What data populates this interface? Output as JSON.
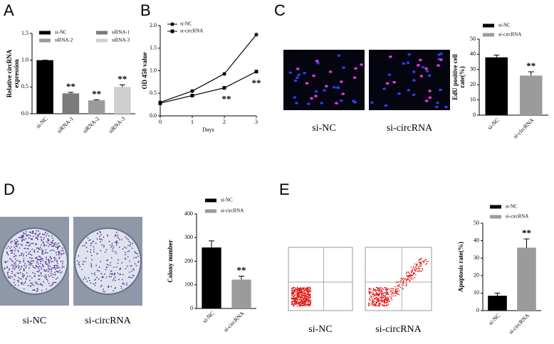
{
  "chart_data": [
    {
      "type": "bar",
      "panel_label": "A",
      "ylabel": [
        "Relative circRNA",
        "expression"
      ],
      "categories": [
        "si-NC",
        "siRNA-1",
        "siRNA-2",
        "siRNA-3"
      ],
      "values": [
        1.0,
        0.38,
        0.25,
        0.5
      ],
      "errors": [
        0,
        0.02,
        0.01,
        0.04
      ],
      "colors": [
        "#000000",
        "#7a7a7a",
        "#9b9b9b",
        "#cfcfcf"
      ],
      "significance": [
        null,
        "**",
        "**",
        "**"
      ],
      "ylim": [
        0,
        1.5
      ],
      "yticks": [
        {
          "value": 0,
          "label": "0.0"
        },
        {
          "value": 0.5,
          "label": "0.5"
        },
        {
          "value": 1,
          "label": "1.0"
        },
        {
          "value": 1.5,
          "label": "1.5"
        }
      ]
    },
    {
      "type": "line",
      "panel_label": "B",
      "ylabel": [
        "OD 450 value"
      ],
      "xlabel": "Days",
      "x": [
        0,
        1,
        2,
        3
      ],
      "xlim": [
        0,
        3
      ],
      "xticks": [
        0,
        1,
        2,
        3
      ],
      "series": [
        {
          "name": "si-NC",
          "color": "#000000",
          "marker": "circle",
          "values": [
            0.3,
            0.55,
            0.93,
            1.8
          ]
        },
        {
          "name": "si-circRNA",
          "color": "#000000",
          "marker": "square",
          "values": [
            0.28,
            0.45,
            0.62,
            0.98
          ]
        }
      ],
      "significance": [
        null,
        null,
        "**",
        "**"
      ],
      "ylim": [
        0,
        2
      ],
      "yticks": [
        {
          "value": 0,
          "label": "0.0"
        },
        {
          "value": 0.5,
          "label": "0.5"
        },
        {
          "value": 1,
          "label": "1.0"
        },
        {
          "value": 1.5,
          "label": "1.5"
        },
        {
          "value": 2,
          "label": "2.0"
        }
      ]
    },
    {
      "type": "bar",
      "panel_label": "C",
      "ylabel": [
        "EdU positive cell",
        "rate(%)"
      ],
      "image_labels": [
        "si-NC",
        "si-circRNA"
      ],
      "categories": [
        "si-NC",
        "si-circRNA"
      ],
      "values": [
        38,
        26
      ],
      "errors": [
        1.5,
        2.5
      ],
      "colors": [
        "#000000",
        "#9b9b9b"
      ],
      "significance": [
        null,
        "**"
      ],
      "ylim": [
        0,
        50
      ],
      "yticks": [
        0,
        10,
        20,
        30,
        40,
        50
      ]
    },
    {
      "type": "bar",
      "panel_label": "D",
      "ylabel": [
        "Colony number"
      ],
      "image_labels": [
        "si-NC",
        "si-circRNA"
      ],
      "categories": [
        "si-NC",
        "si-circRNA"
      ],
      "values": [
        258,
        122
      ],
      "errors": [
        28,
        15
      ],
      "colors": [
        "#000000",
        "#9b9b9b"
      ],
      "significance": [
        null,
        "**"
      ],
      "ylim": [
        0,
        400
      ],
      "yticks": [
        0,
        100,
        200,
        300,
        400
      ]
    },
    {
      "type": "bar",
      "panel_label": "E",
      "ylabel": [
        "Apoptosis rate(%)"
      ],
      "image_labels": [
        "si-NC",
        "si-circRNA"
      ],
      "categories": [
        "si-NC",
        "si-circRNA"
      ],
      "values": [
        8.5,
        36
      ],
      "errors": [
        1.5,
        5
      ],
      "colors": [
        "#000000",
        "#9b9b9b"
      ],
      "significance": [
        null,
        "**"
      ],
      "ylim": [
        0,
        50
      ],
      "yticks": [
        0,
        10,
        20,
        30,
        40,
        50
      ]
    }
  ]
}
